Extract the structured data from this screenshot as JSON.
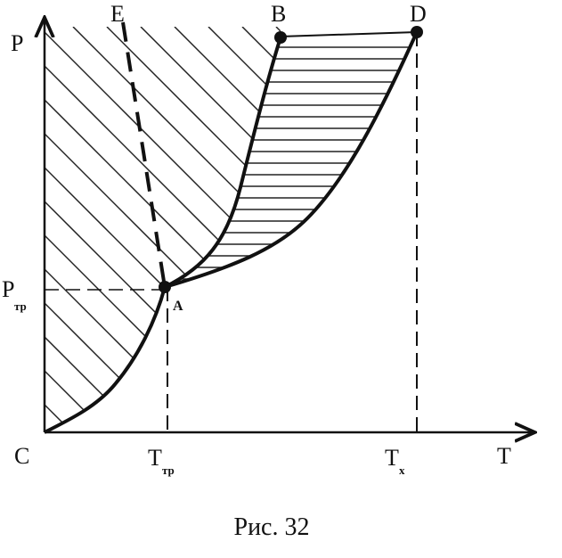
{
  "labels": {
    "y_axis": "P",
    "x_axis": "T",
    "origin": "C",
    "E": "E",
    "B": "B",
    "D": "D",
    "A": "A"
  },
  "ticks": {
    "p_triple": {
      "main": "P",
      "sub": "тр"
    },
    "t_triple": {
      "main": "T",
      "sub": "тр"
    },
    "t_critical": {
      "main": "T",
      "sub": "x"
    }
  },
  "caption": "Рис. 32"
}
